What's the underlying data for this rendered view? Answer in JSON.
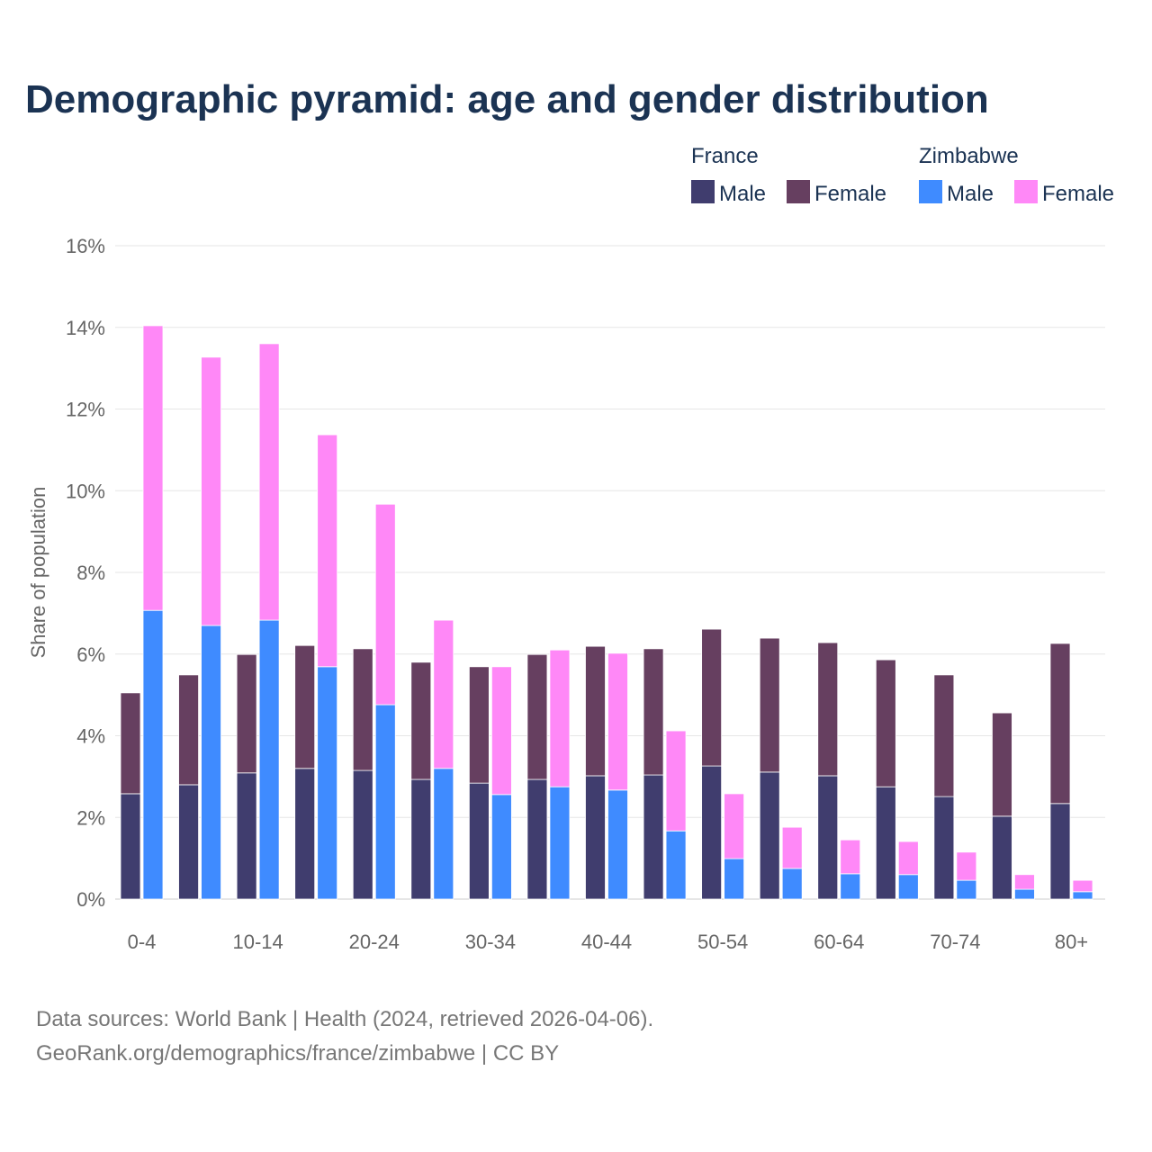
{
  "chart_data": {
    "type": "bar",
    "title": "Demographic pyramid: age and gender distribution",
    "xlabel": "",
    "ylabel": "Share of population",
    "ylim": [
      0,
      16
    ],
    "yticks": [
      "0%",
      "2%",
      "4%",
      "6%",
      "8%",
      "10%",
      "12%",
      "14%",
      "16%"
    ],
    "ytick_values": [
      0,
      2,
      4,
      6,
      8,
      10,
      12,
      14,
      16
    ],
    "grid": true,
    "stacked": true,
    "legend_position": "top-right",
    "categories": [
      "0-4",
      "5-9",
      "10-14",
      "15-19",
      "20-24",
      "25-29",
      "30-34",
      "35-39",
      "40-44",
      "45-49",
      "50-54",
      "55-59",
      "60-64",
      "65-69",
      "70-74",
      "75-79",
      "80+"
    ],
    "xtick_labels": [
      "0-4",
      "",
      "10-14",
      "",
      "20-24",
      "",
      "30-34",
      "",
      "40-44",
      "",
      "50-54",
      "",
      "60-64",
      "",
      "70-74",
      "",
      "80+"
    ],
    "groups": [
      {
        "name": "France",
        "series": [
          {
            "name": "Male",
            "color": "#403d6e",
            "values": [
              2.58,
              2.8,
              3.09,
              3.2,
              3.15,
              2.93,
              2.84,
              2.93,
              3.02,
              3.04,
              3.26,
              3.11,
              3.02,
              2.75,
              2.51,
              2.03,
              2.34
            ]
          },
          {
            "name": "Female",
            "color": "#663f60",
            "values": [
              2.47,
              2.69,
              2.9,
              3.01,
              2.98,
              2.87,
              2.85,
              3.06,
              3.17,
              3.09,
              3.35,
              3.28,
              3.26,
              3.11,
              2.98,
              2.53,
              3.92
            ]
          }
        ]
      },
      {
        "name": "Zimbabwe",
        "series": [
          {
            "name": "Male",
            "color": "#3f8bff",
            "values": [
              7.07,
              6.7,
              6.83,
              5.69,
              4.76,
              3.2,
              2.56,
              2.75,
              2.67,
              1.67,
              0.99,
              0.75,
              0.62,
              0.6,
              0.46,
              0.24,
              0.18
            ]
          },
          {
            "name": "Female",
            "color": "#ff88f7",
            "values": [
              6.97,
              6.57,
              6.77,
              5.68,
              4.91,
              3.63,
              3.13,
              3.35,
              3.35,
              2.45,
              1.59,
              1.01,
              0.83,
              0.81,
              0.69,
              0.36,
              0.28
            ]
          }
        ]
      }
    ]
  },
  "footer": {
    "line1": "Data sources: World Bank | Health (2024, retrieved 2026-04-06).",
    "line2": "GeoRank.org/demographics/france/zimbabwe | CC BY"
  }
}
